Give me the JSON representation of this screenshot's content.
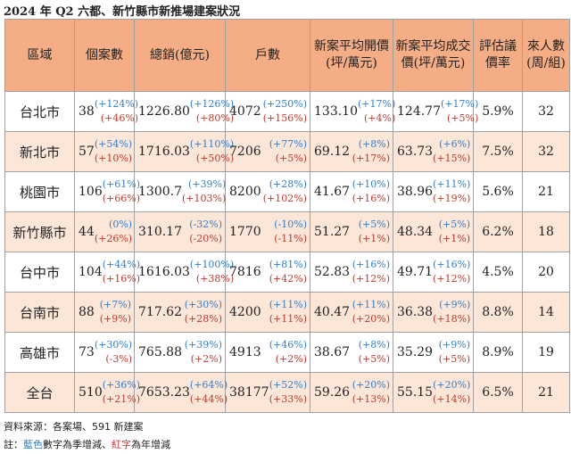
{
  "title": "2024 年 Q2 六都、新竹縣市新推場建案狀況",
  "table": {
    "header": [
      "區域",
      "個案數",
      "總銷(億元)",
      "戶數",
      "新案平均開價(坪/萬元)",
      "新案平均成交價(坪/萬元)",
      "評估議價率",
      "來人數(周/組)"
    ],
    "rows": [
      [
        "台北市",
        [
          "38",
          "(+124%)",
          "(+46%)"
        ],
        [
          "1226.80",
          "(+126%)",
          "(+80%)"
        ],
        [
          "4072",
          "(+250%)",
          "(+156%)"
        ],
        [
          "133.10",
          "(+17%)",
          "(+4%)"
        ],
        [
          "124.77",
          "(+17%)",
          "(+5%)"
        ],
        "5.9%",
        "32"
      ],
      [
        "新北市",
        [
          "57",
          "(+54%)",
          "(+10%)"
        ],
        [
          "1716.03",
          "(+110%)",
          "(+50%)"
        ],
        [
          "7206",
          "(+77%)",
          "(+5%)"
        ],
        [
          "69.12",
          "(+8%)",
          "(+17%)"
        ],
        [
          "63.73",
          "(+6%)",
          "(+15%)"
        ],
        "7.5%",
        "32"
      ],
      [
        "桃園市",
        [
          "106",
          "(+61%)",
          "(+66%)"
        ],
        [
          "1300.7",
          "(+39%)",
          "(+103%)"
        ],
        [
          "8200",
          "(+28%)",
          "(+102%)"
        ],
        [
          "41.67",
          "(+10%)",
          "(+16%)"
        ],
        [
          "38.96",
          "(+11%)",
          "(+19%)"
        ],
        "5.6%",
        "21"
      ],
      [
        "新竹縣市",
        [
          "44",
          "(0%)",
          "(+26%)"
        ],
        [
          "310.17",
          "(-32%)",
          "(-20%)"
        ],
        [
          "1770",
          "(-10%)",
          "(-11%)"
        ],
        [
          "51.27",
          "(+5%)",
          "(+1%)"
        ],
        [
          "48.34",
          "(+5%)",
          "(+1%)"
        ],
        "6.2%",
        "18"
      ],
      [
        "台中市",
        [
          "104",
          "(+44%)",
          "(+16%)"
        ],
        [
          "1616.03",
          "(+100%)",
          "(+38%)"
        ],
        [
          "7816",
          "(+81%)",
          "(+42%)"
        ],
        [
          "52.83",
          "(+16%)",
          "(+12%)"
        ],
        [
          "49.71",
          "(+16%)",
          "(+12%)"
        ],
        "4.5%",
        "20"
      ],
      [
        "台南市",
        [
          "88",
          "(+7%)",
          "(+9%)"
        ],
        [
          "717.62",
          "(+30%)",
          "(+28%)"
        ],
        [
          "4200",
          "(+11%)",
          "(+11%)"
        ],
        [
          "40.47",
          "(+11%)",
          "(+20%)"
        ],
        [
          "36.38",
          "(+9%)",
          "(+18%)"
        ],
        "8.8%",
        "14"
      ],
      [
        "高雄市",
        [
          "73",
          "(+30%)",
          "(-3%)"
        ],
        [
          "765.88",
          "(+39%)",
          "(+2%)"
        ],
        [
          "4913",
          "(+46%)",
          "(+2%)"
        ],
        [
          "38.67",
          "(+8%)",
          "(+5%)"
        ],
        [
          "35.29",
          "(+9%)",
          "(+5%)"
        ],
        "8.9%",
        "19"
      ],
      [
        "全台",
        [
          "510",
          "(+36%)",
          "(+21%)"
        ],
        [
          "7653.23",
          "(+64%)",
          "(+44%)"
        ],
        [
          "38177",
          "(+52%)",
          "(+33%)"
        ],
        [
          "59.26",
          "(+20%)",
          "(+13%)"
        ],
        [
          "55.15",
          "(+20%)",
          "(+14%)"
        ],
        "6.5%",
        "21"
      ]
    ]
  },
  "source": "資料來源：各案場、591 新建案",
  "note": [
    "註：",
    "藍色",
    "數字為季增減、",
    "紅字",
    "為年增減"
  ]
}
